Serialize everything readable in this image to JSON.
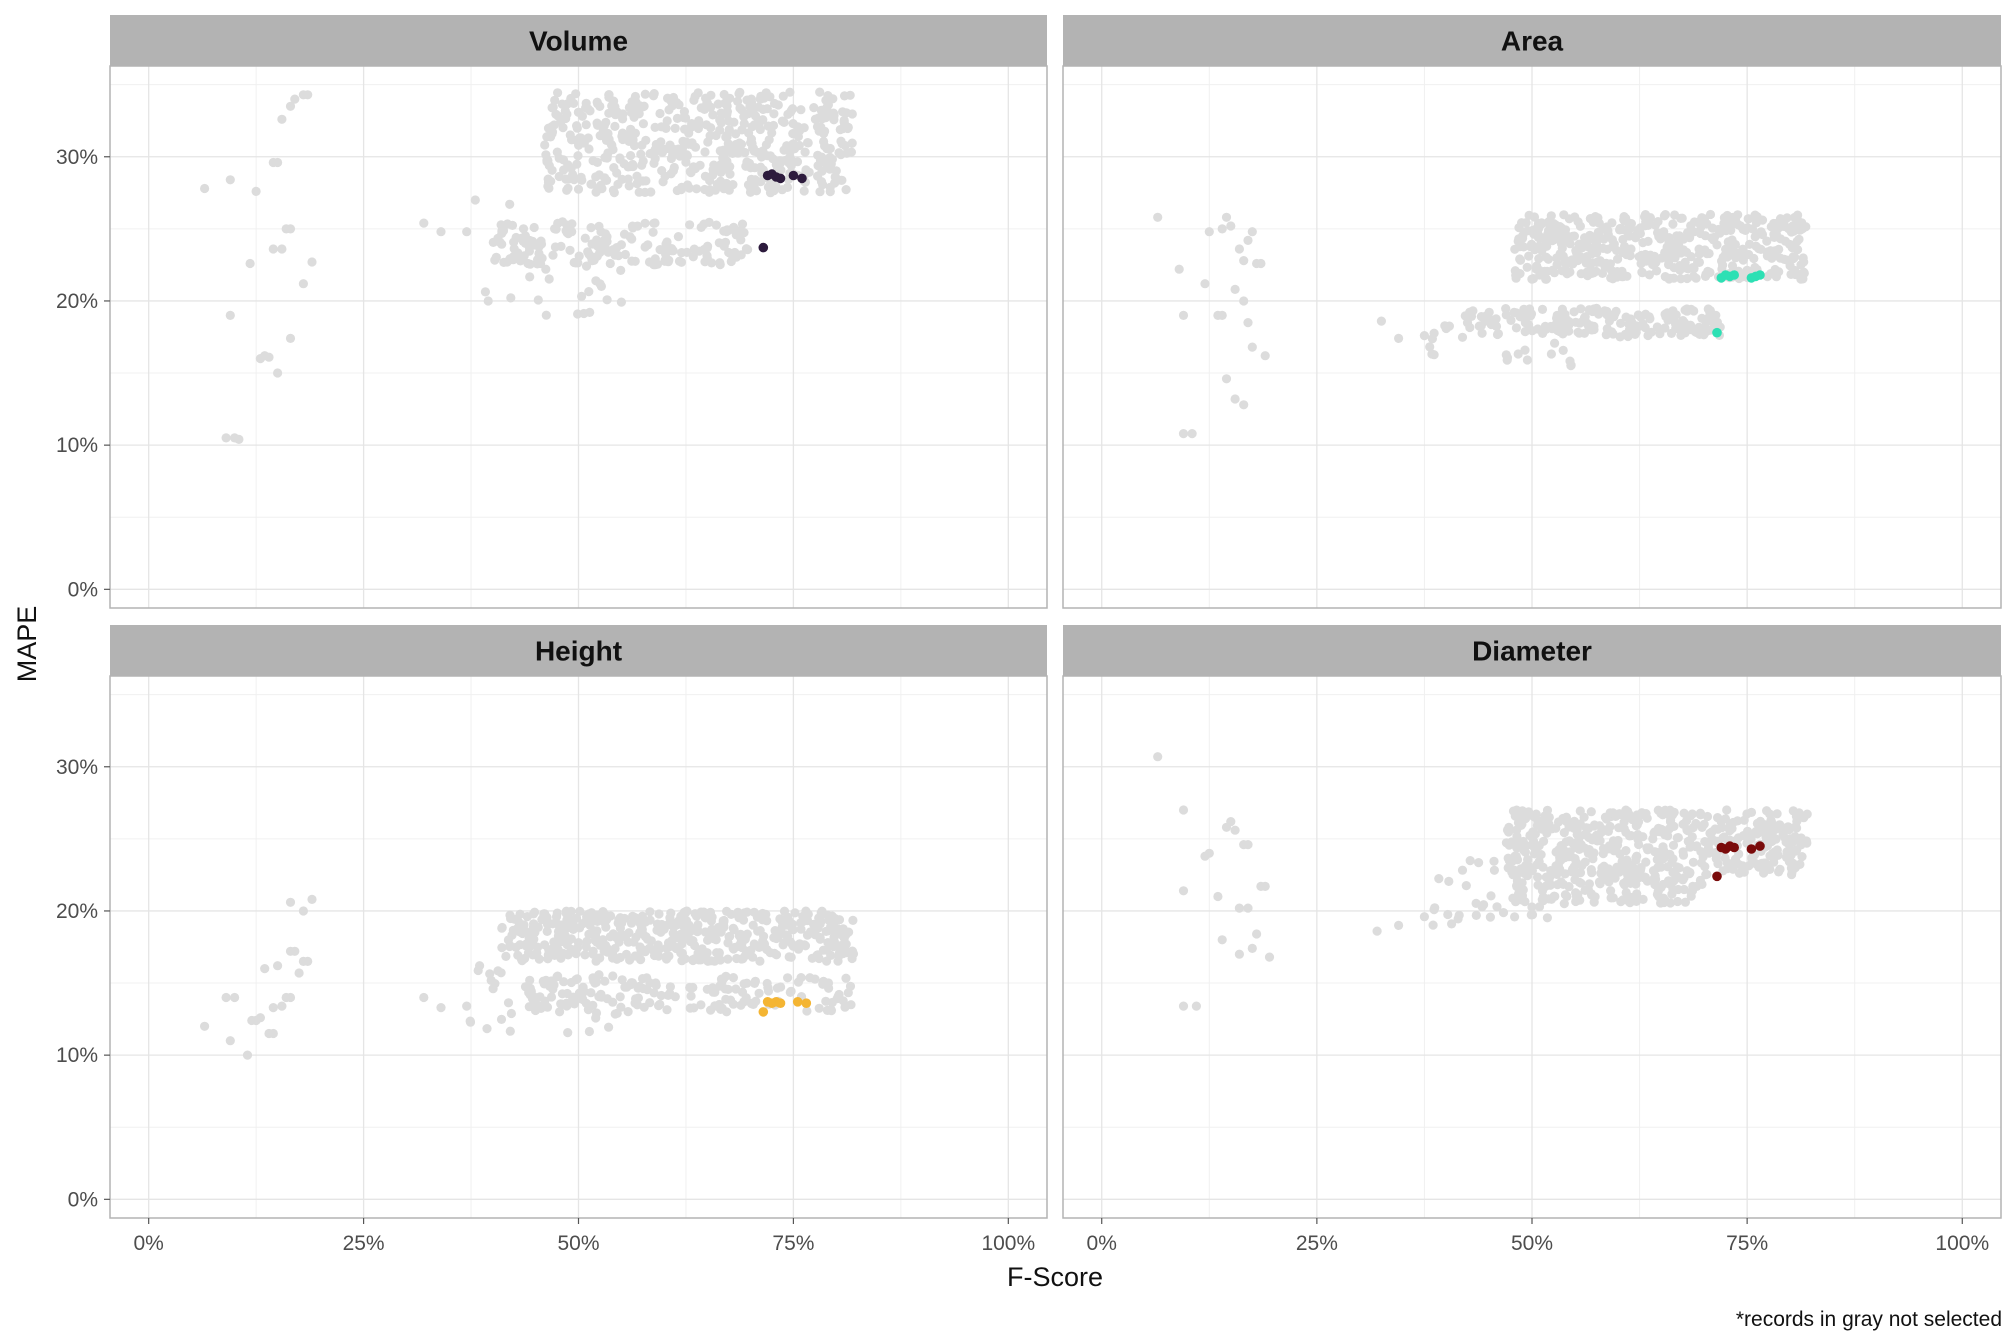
{
  "chart_data": {
    "type": "scatter",
    "xlabel": "F-Score",
    "ylabel": "MAPE",
    "caption": "*records in gray not selected",
    "xlim": [
      0,
      1
    ],
    "ylim": [
      0,
      0.35
    ],
    "x_ticks": [
      0,
      0.25,
      0.5,
      0.75,
      1.0
    ],
    "x_tick_labels": [
      "0%",
      "25%",
      "50%",
      "75%",
      "100%"
    ],
    "y_ticks": [
      0,
      0.1,
      0.2,
      0.3
    ],
    "y_tick_labels": [
      "0%",
      "10%",
      "20%",
      "30%"
    ],
    "grid": true,
    "unselected_color": "#dcdcdc",
    "panels": [
      {
        "title": "Volume",
        "highlight_color": "#2d1b3d",
        "selected": [
          [
            0.72,
            0.287
          ],
          [
            0.725,
            0.288
          ],
          [
            0.73,
            0.286
          ],
          [
            0.735,
            0.285
          ],
          [
            0.75,
            0.287
          ],
          [
            0.76,
            0.285
          ],
          [
            0.715,
            0.237
          ]
        ],
        "clusters": [
          {
            "x": [
              0.46,
              0.82
            ],
            "y": [
              0.275,
              0.345
            ],
            "n": 520
          },
          {
            "x": [
              0.4,
              0.7
            ],
            "y": [
              0.225,
              0.255
            ],
            "n": 160
          },
          {
            "x": [
              0.38,
              0.55
            ],
            "y": [
              0.19,
              0.245
            ],
            "n": 30
          }
        ],
        "outliers": [
          [
            0.065,
            0.278
          ],
          [
            0.095,
            0.284
          ],
          [
            0.125,
            0.276
          ],
          [
            0.118,
            0.226
          ],
          [
            0.145,
            0.296
          ],
          [
            0.15,
            0.296
          ],
          [
            0.145,
            0.236
          ],
          [
            0.155,
            0.236
          ],
          [
            0.16,
            0.25
          ],
          [
            0.165,
            0.25
          ],
          [
            0.155,
            0.326
          ],
          [
            0.165,
            0.335
          ],
          [
            0.17,
            0.34
          ],
          [
            0.18,
            0.343
          ],
          [
            0.185,
            0.343
          ],
          [
            0.095,
            0.19
          ],
          [
            0.13,
            0.16
          ],
          [
            0.135,
            0.162
          ],
          [
            0.14,
            0.161
          ],
          [
            0.15,
            0.15
          ],
          [
            0.165,
            0.174
          ],
          [
            0.18,
            0.212
          ],
          [
            0.19,
            0.227
          ],
          [
            0.09,
            0.105
          ],
          [
            0.1,
            0.105
          ],
          [
            0.105,
            0.104
          ],
          [
            0.32,
            0.254
          ],
          [
            0.34,
            0.248
          ],
          [
            0.37,
            0.248
          ],
          [
            0.38,
            0.27
          ],
          [
            0.395,
            0.2
          ],
          [
            0.42,
            0.267
          ]
        ]
      },
      {
        "title": "Area",
        "highlight_color": "#2de0b4",
        "selected": [
          [
            0.72,
            0.216
          ],
          [
            0.725,
            0.218
          ],
          [
            0.73,
            0.217
          ],
          [
            0.735,
            0.218
          ],
          [
            0.755,
            0.216
          ],
          [
            0.76,
            0.217
          ],
          [
            0.765,
            0.218
          ],
          [
            0.715,
            0.178
          ]
        ],
        "clusters": [
          {
            "x": [
              0.48,
              0.82
            ],
            "y": [
              0.215,
              0.26
            ],
            "n": 460
          },
          {
            "x": [
              0.42,
              0.72
            ],
            "y": [
              0.175,
              0.195
            ],
            "n": 170
          },
          {
            "x": [
              0.38,
              0.55
            ],
            "y": [
              0.155,
              0.185
            ],
            "n": 30
          }
        ],
        "outliers": [
          [
            0.065,
            0.258
          ],
          [
            0.09,
            0.222
          ],
          [
            0.095,
            0.19
          ],
          [
            0.12,
            0.212
          ],
          [
            0.125,
            0.248
          ],
          [
            0.14,
            0.25
          ],
          [
            0.145,
            0.258
          ],
          [
            0.15,
            0.252
          ],
          [
            0.16,
            0.236
          ],
          [
            0.165,
            0.228
          ],
          [
            0.17,
            0.242
          ],
          [
            0.175,
            0.248
          ],
          [
            0.18,
            0.226
          ],
          [
            0.185,
            0.226
          ],
          [
            0.155,
            0.208
          ],
          [
            0.165,
            0.2
          ],
          [
            0.135,
            0.19
          ],
          [
            0.14,
            0.19
          ],
          [
            0.145,
            0.146
          ],
          [
            0.155,
            0.132
          ],
          [
            0.165,
            0.128
          ],
          [
            0.17,
            0.185
          ],
          [
            0.175,
            0.168
          ],
          [
            0.19,
            0.162
          ],
          [
            0.095,
            0.108
          ],
          [
            0.105,
            0.108
          ],
          [
            0.325,
            0.186
          ],
          [
            0.345,
            0.174
          ],
          [
            0.375,
            0.176
          ]
        ]
      },
      {
        "title": "Height",
        "highlight_color": "#f4b533",
        "selected": [
          [
            0.72,
            0.137
          ],
          [
            0.725,
            0.136
          ],
          [
            0.73,
            0.137
          ],
          [
            0.735,
            0.136
          ],
          [
            0.755,
            0.137
          ],
          [
            0.765,
            0.136
          ],
          [
            0.715,
            0.13
          ]
        ],
        "clusters": [
          {
            "x": [
              0.41,
              0.82
            ],
            "y": [
              0.165,
              0.2
            ],
            "n": 470
          },
          {
            "x": [
              0.44,
              0.82
            ],
            "y": [
              0.13,
              0.155
            ],
            "n": 170
          },
          {
            "x": [
              0.37,
              0.55
            ],
            "y": [
              0.115,
              0.16
            ],
            "n": 35
          }
        ],
        "outliers": [
          [
            0.065,
            0.12
          ],
          [
            0.09,
            0.14
          ],
          [
            0.095,
            0.11
          ],
          [
            0.1,
            0.14
          ],
          [
            0.115,
            0.1
          ],
          [
            0.12,
            0.124
          ],
          [
            0.125,
            0.124
          ],
          [
            0.13,
            0.126
          ],
          [
            0.135,
            0.16
          ],
          [
            0.14,
            0.115
          ],
          [
            0.145,
            0.115
          ],
          [
            0.145,
            0.133
          ],
          [
            0.15,
            0.162
          ],
          [
            0.155,
            0.134
          ],
          [
            0.16,
            0.14
          ],
          [
            0.165,
            0.14
          ],
          [
            0.165,
            0.172
          ],
          [
            0.17,
            0.172
          ],
          [
            0.175,
            0.157
          ],
          [
            0.18,
            0.165
          ],
          [
            0.185,
            0.165
          ],
          [
            0.165,
            0.206
          ],
          [
            0.18,
            0.2
          ],
          [
            0.19,
            0.208
          ],
          [
            0.32,
            0.14
          ],
          [
            0.34,
            0.133
          ],
          [
            0.37,
            0.134
          ],
          [
            0.385,
            0.162
          ]
        ]
      },
      {
        "title": "Diameter",
        "highlight_color": "#7a0b0b",
        "selected": [
          [
            0.72,
            0.244
          ],
          [
            0.725,
            0.243
          ],
          [
            0.73,
            0.245
          ],
          [
            0.735,
            0.244
          ],
          [
            0.755,
            0.243
          ],
          [
            0.765,
            0.245
          ],
          [
            0.715,
            0.224
          ]
        ],
        "clusters": [
          {
            "x": [
              0.47,
              0.82
            ],
            "y": [
              0.225,
              0.27
            ],
            "n": 480
          },
          {
            "x": [
              0.48,
              0.7
            ],
            "y": [
              0.205,
              0.225
            ],
            "n": 120
          },
          {
            "x": [
              0.38,
              0.52
            ],
            "y": [
              0.19,
              0.235
            ],
            "n": 35
          }
        ],
        "outliers": [
          [
            0.065,
            0.307
          ],
          [
            0.095,
            0.27
          ],
          [
            0.095,
            0.214
          ],
          [
            0.12,
            0.238
          ],
          [
            0.125,
            0.24
          ],
          [
            0.135,
            0.21
          ],
          [
            0.14,
            0.18
          ],
          [
            0.145,
            0.258
          ],
          [
            0.15,
            0.262
          ],
          [
            0.155,
            0.256
          ],
          [
            0.16,
            0.202
          ],
          [
            0.16,
            0.17
          ],
          [
            0.165,
            0.246
          ],
          [
            0.17,
            0.246
          ],
          [
            0.17,
            0.202
          ],
          [
            0.175,
            0.174
          ],
          [
            0.18,
            0.184
          ],
          [
            0.185,
            0.217
          ],
          [
            0.19,
            0.217
          ],
          [
            0.195,
            0.168
          ],
          [
            0.095,
            0.134
          ],
          [
            0.11,
            0.134
          ],
          [
            0.32,
            0.186
          ],
          [
            0.345,
            0.19
          ],
          [
            0.375,
            0.196
          ]
        ]
      }
    ]
  }
}
